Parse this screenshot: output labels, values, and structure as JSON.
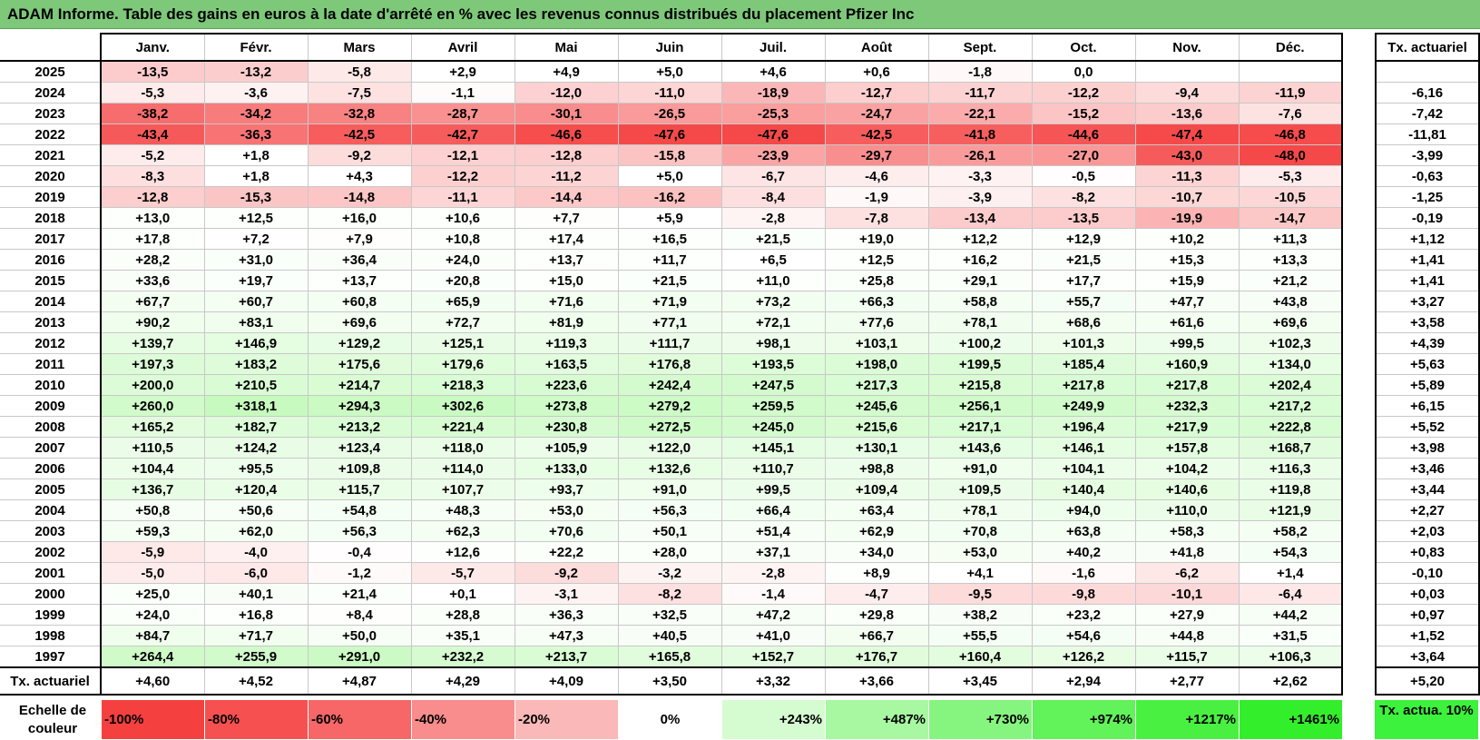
{
  "title": "ADAM Informe. Table des gains en euros à la date d'arrêté en % avec les revenus connus distribués du placement Pfizer Inc",
  "months": [
    "Janv.",
    "Févr.",
    "Mars",
    "Avril",
    "Mai",
    "Juin",
    "Juil.",
    "Août",
    "Sept.",
    "Oct.",
    "Nov.",
    "Déc."
  ],
  "tx_header": "Tx. actuariel",
  "rows": [
    {
      "year": "2025",
      "values": [
        "-13,5",
        "-13,2",
        "-5,8",
        "+2,9",
        "+4,9",
        "+5,0",
        "+4,6",
        "+0,6",
        "-1,8",
        "0,0",
        "",
        ""
      ],
      "tx": ""
    },
    {
      "year": "2024",
      "values": [
        "-5,3",
        "-3,6",
        "-7,5",
        "-1,1",
        "-12,0",
        "-11,0",
        "-18,9",
        "-12,7",
        "-11,7",
        "-12,2",
        "-9,4",
        "-11,9"
      ],
      "tx": "-6,16"
    },
    {
      "year": "2023",
      "values": [
        "-38,2",
        "-34,2",
        "-32,8",
        "-28,7",
        "-30,1",
        "-26,5",
        "-25,3",
        "-24,7",
        "-22,1",
        "-15,2",
        "-13,6",
        "-7,6"
      ],
      "tx": "-7,42"
    },
    {
      "year": "2022",
      "values": [
        "-43,4",
        "-36,3",
        "-42,5",
        "-42,7",
        "-46,6",
        "-47,6",
        "-47,6",
        "-42,5",
        "-41,8",
        "-44,6",
        "-47,4",
        "-46,8"
      ],
      "tx": "-11,81"
    },
    {
      "year": "2021",
      "values": [
        "-5,2",
        "+1,8",
        "-9,2",
        "-12,1",
        "-12,8",
        "-15,8",
        "-23,9",
        "-29,7",
        "-26,1",
        "-27,0",
        "-43,0",
        "-48,0"
      ],
      "tx": "-3,99"
    },
    {
      "year": "2020",
      "values": [
        "-8,3",
        "+1,8",
        "+4,3",
        "-12,2",
        "-11,2",
        "+5,0",
        "-6,7",
        "-4,6",
        "-3,3",
        "-0,5",
        "-11,3",
        "-5,3"
      ],
      "tx": "-0,63"
    },
    {
      "year": "2019",
      "values": [
        "-12,8",
        "-15,3",
        "-14,8",
        "-11,1",
        "-14,4",
        "-16,2",
        "-8,4",
        "-1,9",
        "-3,9",
        "-8,2",
        "-10,7",
        "-10,5"
      ],
      "tx": "-1,25"
    },
    {
      "year": "2018",
      "values": [
        "+13,0",
        "+12,5",
        "+16,0",
        "+10,6",
        "+7,7",
        "+5,9",
        "-2,8",
        "-7,8",
        "-13,4",
        "-13,5",
        "-19,9",
        "-14,7"
      ],
      "tx": "-0,19"
    },
    {
      "year": "2017",
      "values": [
        "+17,8",
        "+7,2",
        "+7,9",
        "+10,8",
        "+17,4",
        "+16,5",
        "+21,5",
        "+19,0",
        "+12,2",
        "+12,9",
        "+10,2",
        "+11,3"
      ],
      "tx": "+1,12"
    },
    {
      "year": "2016",
      "values": [
        "+28,2",
        "+31,0",
        "+36,4",
        "+24,0",
        "+13,7",
        "+11,7",
        "+6,5",
        "+12,5",
        "+16,2",
        "+21,5",
        "+15,3",
        "+13,3"
      ],
      "tx": "+1,41"
    },
    {
      "year": "2015",
      "values": [
        "+33,6",
        "+19,7",
        "+13,7",
        "+20,8",
        "+15,0",
        "+21,5",
        "+11,0",
        "+25,8",
        "+29,1",
        "+17,7",
        "+15,9",
        "+21,2"
      ],
      "tx": "+1,41"
    },
    {
      "year": "2014",
      "values": [
        "+67,7",
        "+60,7",
        "+60,8",
        "+65,9",
        "+71,6",
        "+71,9",
        "+73,2",
        "+66,3",
        "+58,8",
        "+55,7",
        "+47,7",
        "+43,8"
      ],
      "tx": "+3,27"
    },
    {
      "year": "2013",
      "values": [
        "+90,2",
        "+83,1",
        "+69,6",
        "+72,7",
        "+81,9",
        "+77,1",
        "+72,1",
        "+77,6",
        "+78,1",
        "+68,6",
        "+61,6",
        "+69,6"
      ],
      "tx": "+3,58"
    },
    {
      "year": "2012",
      "values": [
        "+139,7",
        "+146,9",
        "+129,2",
        "+125,1",
        "+119,3",
        "+111,7",
        "+98,1",
        "+103,1",
        "+100,2",
        "+101,3",
        "+99,5",
        "+102,3"
      ],
      "tx": "+4,39"
    },
    {
      "year": "2011",
      "values": [
        "+197,3",
        "+183,2",
        "+175,6",
        "+179,6",
        "+163,5",
        "+176,8",
        "+193,5",
        "+198,0",
        "+199,5",
        "+185,4",
        "+160,9",
        "+134,0"
      ],
      "tx": "+5,63"
    },
    {
      "year": "2010",
      "values": [
        "+200,0",
        "+210,5",
        "+214,7",
        "+218,3",
        "+223,6",
        "+242,4",
        "+247,5",
        "+217,3",
        "+215,8",
        "+217,8",
        "+217,8",
        "+202,4"
      ],
      "tx": "+5,89"
    },
    {
      "year": "2009",
      "values": [
        "+260,0",
        "+318,1",
        "+294,3",
        "+302,6",
        "+273,8",
        "+279,2",
        "+259,5",
        "+245,6",
        "+256,1",
        "+249,9",
        "+232,3",
        "+217,2"
      ],
      "tx": "+6,15"
    },
    {
      "year": "2008",
      "values": [
        "+165,2",
        "+182,7",
        "+213,2",
        "+221,4",
        "+230,8",
        "+272,5",
        "+245,0",
        "+215,6",
        "+217,1",
        "+196,4",
        "+217,9",
        "+222,8"
      ],
      "tx": "+5,52"
    },
    {
      "year": "2007",
      "values": [
        "+110,5",
        "+124,2",
        "+123,4",
        "+118,0",
        "+105,9",
        "+122,0",
        "+145,1",
        "+130,1",
        "+143,6",
        "+146,1",
        "+157,8",
        "+168,7"
      ],
      "tx": "+3,98"
    },
    {
      "year": "2006",
      "values": [
        "+104,4",
        "+95,5",
        "+109,8",
        "+114,0",
        "+133,0",
        "+132,6",
        "+110,7",
        "+98,8",
        "+91,0",
        "+104,1",
        "+104,2",
        "+116,3"
      ],
      "tx": "+3,46"
    },
    {
      "year": "2005",
      "values": [
        "+136,7",
        "+120,4",
        "+115,7",
        "+107,7",
        "+93,7",
        "+91,0",
        "+99,5",
        "+109,4",
        "+109,5",
        "+140,4",
        "+140,6",
        "+119,8"
      ],
      "tx": "+3,44"
    },
    {
      "year": "2004",
      "values": [
        "+50,8",
        "+50,6",
        "+54,8",
        "+48,3",
        "+53,0",
        "+56,3",
        "+66,4",
        "+63,4",
        "+78,1",
        "+94,0",
        "+110,0",
        "+121,9"
      ],
      "tx": "+2,27"
    },
    {
      "year": "2003",
      "values": [
        "+59,3",
        "+62,0",
        "+56,3",
        "+62,3",
        "+70,6",
        "+50,1",
        "+51,4",
        "+62,9",
        "+70,8",
        "+63,8",
        "+58,3",
        "+58,2"
      ],
      "tx": "+2,03"
    },
    {
      "year": "2002",
      "values": [
        "-5,9",
        "-4,0",
        "-0,4",
        "+12,6",
        "+22,2",
        "+28,0",
        "+37,1",
        "+34,0",
        "+53,0",
        "+40,2",
        "+41,8",
        "+54,3"
      ],
      "tx": "+0,83"
    },
    {
      "year": "2001",
      "values": [
        "-5,0",
        "-6,0",
        "-1,2",
        "-5,7",
        "-9,2",
        "-3,2",
        "-2,8",
        "+8,9",
        "+4,1",
        "-1,6",
        "-6,2",
        "+1,4"
      ],
      "tx": "-0,10"
    },
    {
      "year": "2000",
      "values": [
        "+25,0",
        "+40,1",
        "+21,4",
        "+0,1",
        "-3,1",
        "-8,2",
        "-1,4",
        "-4,7",
        "-9,5",
        "-9,8",
        "-10,1",
        "-6,4"
      ],
      "tx": "+0,03"
    },
    {
      "year": "1999",
      "values": [
        "+24,0",
        "+16,8",
        "+8,4",
        "+28,8",
        "+36,3",
        "+32,5",
        "+47,2",
        "+29,8",
        "+38,2",
        "+23,2",
        "+27,9",
        "+44,2"
      ],
      "tx": "+0,97"
    },
    {
      "year": "1998",
      "values": [
        "+84,7",
        "+71,7",
        "+50,0",
        "+35,1",
        "+47,3",
        "+40,5",
        "+41,0",
        "+66,7",
        "+55,5",
        "+54,6",
        "+44,8",
        "+31,5"
      ],
      "tx": "+1,52"
    },
    {
      "year": "1997",
      "values": [
        "+264,4",
        "+255,9",
        "+291,0",
        "+232,2",
        "+213,7",
        "+165,8",
        "+152,7",
        "+176,7",
        "+160,4",
        "+126,2",
        "+115,7",
        "+106,3"
      ],
      "tx": "+3,64"
    }
  ],
  "footer": {
    "label": "Tx. actuariel",
    "values": [
      "+4,60",
      "+4,52",
      "+4,87",
      "+4,29",
      "+4,09",
      "+3,50",
      "+3,32",
      "+3,66",
      "+3,45",
      "+2,94",
      "+2,77",
      "+2,62"
    ],
    "overall": "+5,20"
  },
  "scale": {
    "label": "Echelle de couleur",
    "items": [
      {
        "text": "-100%",
        "color": "#f54040",
        "kind": "neg"
      },
      {
        "text": "-80%",
        "color": "#f65050",
        "kind": "neg"
      },
      {
        "text": "-60%",
        "color": "#f76767",
        "kind": "neg"
      },
      {
        "text": "-40%",
        "color": "#f98c8c",
        "kind": "neg"
      },
      {
        "text": "-20%",
        "color": "#fbb8b8",
        "kind": "neg"
      },
      {
        "text": "0%",
        "color": "#ffffff",
        "kind": "zero"
      },
      {
        "text": "+243%",
        "color": "#d4fcd0",
        "kind": "pos"
      },
      {
        "text": "+487%",
        "color": "#a8f8a2",
        "kind": "pos"
      },
      {
        "text": "+730%",
        "color": "#86f57f",
        "kind": "pos"
      },
      {
        "text": "+974%",
        "color": "#62f25a",
        "kind": "pos"
      },
      {
        "text": "+1217%",
        "color": "#49f041",
        "kind": "pos"
      },
      {
        "text": "+1461%",
        "color": "#33ee2b",
        "kind": "pos"
      }
    ],
    "tx_label": "Tx. actua. 10%",
    "tx_color": "#3cf23c"
  }
}
